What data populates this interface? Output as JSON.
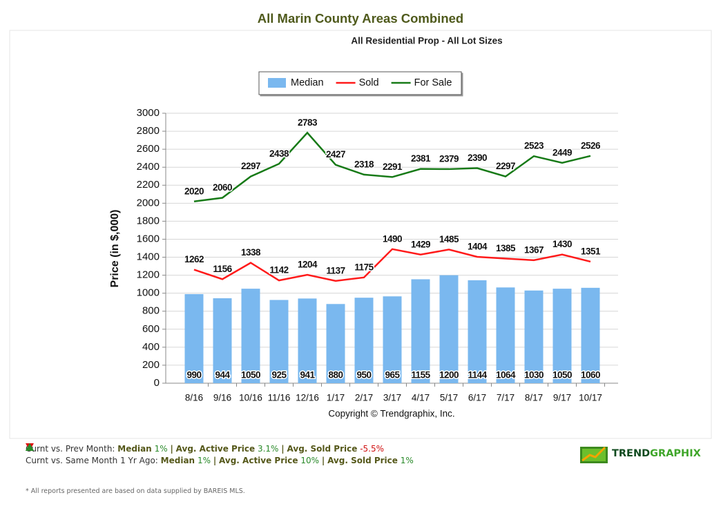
{
  "page_title": "All Marin County Areas Combined",
  "chart_data": {
    "type": "bar",
    "title": "All Residential Prop - All Lot Sizes",
    "y_label": "Price (in $,000)",
    "copyright": "Copyright © Trendgraphix, Inc.",
    "categories": [
      "8/16",
      "9/16",
      "10/16",
      "11/16",
      "12/16",
      "1/17",
      "2/17",
      "3/17",
      "4/17",
      "5/17",
      "6/17",
      "7/17",
      "8/17",
      "9/17",
      "10/17"
    ],
    "series": [
      {
        "name": "Median",
        "type": "bar",
        "color": "#7ab8ef",
        "values": [
          990,
          944,
          1050,
          925,
          941,
          880,
          950,
          965,
          1155,
          1200,
          1144,
          1064,
          1030,
          1050,
          1060
        ]
      },
      {
        "name": "Sold",
        "type": "line",
        "color": "#ff1a1a",
        "values": [
          1262,
          1156,
          1338,
          1142,
          1204,
          1137,
          1175,
          1490,
          1429,
          1485,
          1404,
          1385,
          1367,
          1430,
          1351
        ]
      },
      {
        "name": "For Sale",
        "type": "line",
        "color": "#177a17",
        "values": [
          2020,
          2060,
          2297,
          2438,
          2783,
          2427,
          2318,
          2291,
          2381,
          2379,
          2390,
          2297,
          2523,
          2449,
          2526
        ]
      }
    ],
    "ylim": [
      0,
      3000
    ],
    "yticks": [
      0,
      200,
      400,
      600,
      800,
      1000,
      1200,
      1400,
      1600,
      1800,
      2000,
      2200,
      2400,
      2600,
      2800,
      3000
    ],
    "grid": true,
    "legend": "top"
  },
  "summary": {
    "separator": "|",
    "rows": [
      {
        "label": "Curnt vs. Prev Month:",
        "items": [
          {
            "name": "Median",
            "direction": "up",
            "change": "1%"
          },
          {
            "name": "Avg. Active Price",
            "direction": "up",
            "change": "3.1%"
          },
          {
            "name": "Avg. Sold Price",
            "direction": "down",
            "change": "-5.5%"
          }
        ]
      },
      {
        "label": "Curnt vs. Same Month 1 Yr Ago:",
        "items": [
          {
            "name": "Median",
            "direction": "up",
            "change": "1%"
          },
          {
            "name": "Avg. Active Price",
            "direction": "up",
            "change": "10%"
          },
          {
            "name": "Avg. Sold Price",
            "direction": "up",
            "change": "1%"
          }
        ]
      }
    ]
  },
  "logo": {
    "first": "TREND",
    "second": "GRAPHIX"
  },
  "disclaimer": "* All reports presented are based on data supplied by BAREIS MLS."
}
